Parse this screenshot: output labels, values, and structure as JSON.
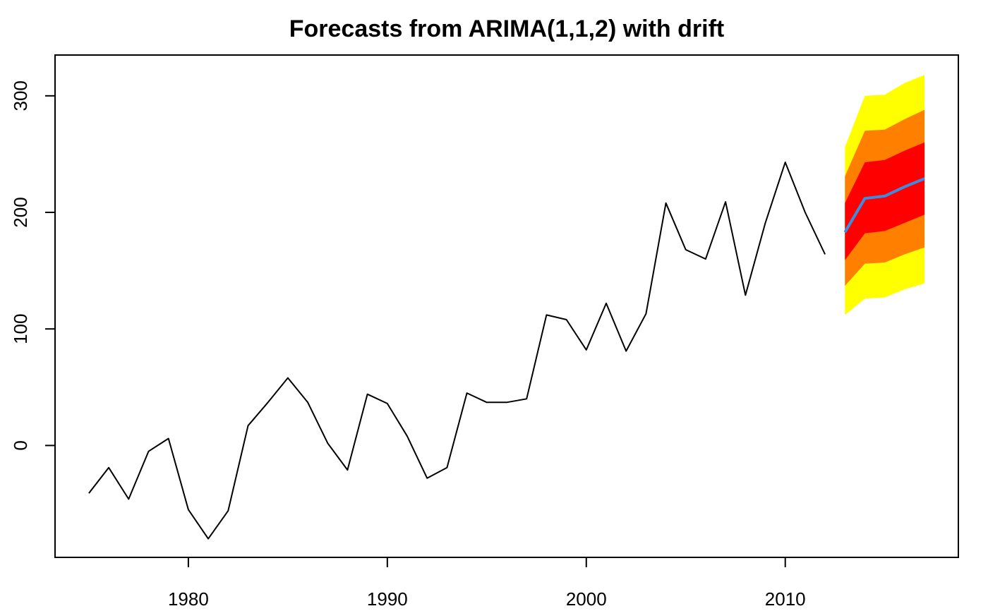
{
  "chart_data": {
    "type": "line",
    "title": "Forecasts from ARIMA(1,1,2) with drift",
    "xlabel": "",
    "ylabel": "",
    "xlim": [
      1973.3,
      2018.7
    ],
    "ylim": [
      -96,
      335
    ],
    "x_ticks": [
      1980,
      1990,
      2000,
      2010
    ],
    "y_ticks": [
      0,
      100,
      200,
      300
    ],
    "grid": false,
    "legend": "none",
    "historical": {
      "color": "#000000",
      "x": [
        1975,
        1976,
        1977,
        1978,
        1979,
        1980,
        1981,
        1982,
        1983,
        1984,
        1985,
        1986,
        1987,
        1988,
        1989,
        1990,
        1991,
        1992,
        1993,
        1994,
        1995,
        1996,
        1997,
        1998,
        1999,
        2000,
        2001,
        2002,
        2003,
        2004,
        2005,
        2006,
        2007,
        2008,
        2009,
        2010,
        2011,
        2012
      ],
      "y": [
        -41,
        -19,
        -46,
        -5,
        6,
        -55,
        -80,
        -56,
        17,
        37,
        58,
        37,
        2,
        -21,
        44,
        36,
        8,
        -28,
        -19,
        45,
        37,
        37,
        40,
        112,
        108,
        82,
        122,
        81,
        113,
        208,
        168,
        160,
        209,
        129,
        191,
        243,
        200,
        164
      ]
    },
    "forecast": {
      "color": "#3c8ce1",
      "x": [
        2013,
        2014,
        2015,
        2016,
        2017
      ],
      "mean": [
        183,
        212,
        214,
        222,
        229
      ],
      "intervals": [
        {
          "color": "#ffff00",
          "lower": [
            112,
            126,
            127,
            134,
            139
          ],
          "upper": [
            256,
            300,
            301,
            311,
            318
          ]
        },
        {
          "color": "#ff8000",
          "lower": [
            137,
            156,
            157,
            164,
            170
          ],
          "upper": [
            231,
            270,
            271,
            280,
            288
          ]
        },
        {
          "color": "#ff0000",
          "lower": [
            159,
            182,
            184,
            191,
            198
          ],
          "upper": [
            208,
            243,
            245,
            253,
            260
          ]
        }
      ]
    }
  }
}
